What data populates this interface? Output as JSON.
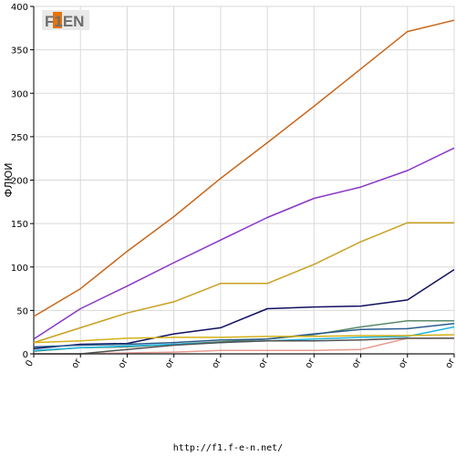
{
  "logo": {
    "text": "F1EN",
    "accent": "#e8730c"
  },
  "footer": {
    "url": "http://f1.f-e-n.net/"
  },
  "chart_data": {
    "type": "line",
    "ylabel": "ФЛЮИ",
    "ylim": [
      0,
      400
    ],
    "yticks": [
      0,
      50,
      100,
      150,
      200,
      250,
      300,
      350,
      400
    ],
    "x": [
      0,
      1,
      2,
      3,
      4,
      5,
      6,
      7,
      8,
      9
    ],
    "xtick_labels": [
      "0",
      "or",
      "or",
      "or",
      "or",
      "or",
      "or",
      "or",
      "or",
      "or"
    ],
    "grid": true,
    "series": [
      {
        "color": "#c8661a",
        "values": [
          43,
          75,
          118,
          158,
          202,
          243,
          285,
          328,
          371,
          384
        ]
      },
      {
        "color": "#8a35c8",
        "values": [
          17,
          52,
          78,
          105,
          131,
          157,
          179,
          192,
          211,
          237
        ]
      },
      {
        "color": "#c8a020",
        "values": [
          13,
          30,
          47,
          60,
          81,
          81,
          103,
          129,
          151,
          151
        ]
      },
      {
        "color": "#101060",
        "values": [
          6,
          11,
          12,
          23,
          30,
          52,
          54,
          55,
          62,
          97
        ]
      },
      {
        "color": "#5a8a6a",
        "values": [
          3,
          7,
          8,
          11,
          14,
          17,
          22,
          31,
          38,
          38
        ]
      },
      {
        "color": "#2c5c8c",
        "values": [
          8,
          10,
          11,
          13,
          16,
          17,
          23,
          28,
          29,
          35
        ]
      },
      {
        "color": "#20b4e0",
        "values": [
          4,
          7,
          9,
          11,
          13,
          15,
          17,
          19,
          20,
          31
        ]
      },
      {
        "color": "#d4b018",
        "values": [
          13,
          15,
          18,
          19,
          19,
          20,
          20,
          21,
          21,
          22
        ]
      },
      {
        "color": "#e89a90",
        "values": [
          0,
          0,
          1,
          2,
          4,
          4,
          4,
          5,
          18,
          18
        ]
      },
      {
        "color": "#505050",
        "values": [
          0,
          0,
          5,
          10,
          13,
          15,
          15,
          16,
          18,
          18
        ]
      },
      {
        "color": "#404040",
        "values": [
          0,
          0,
          0,
          0,
          0,
          0,
          0,
          0,
          0,
          0
        ]
      }
    ]
  }
}
